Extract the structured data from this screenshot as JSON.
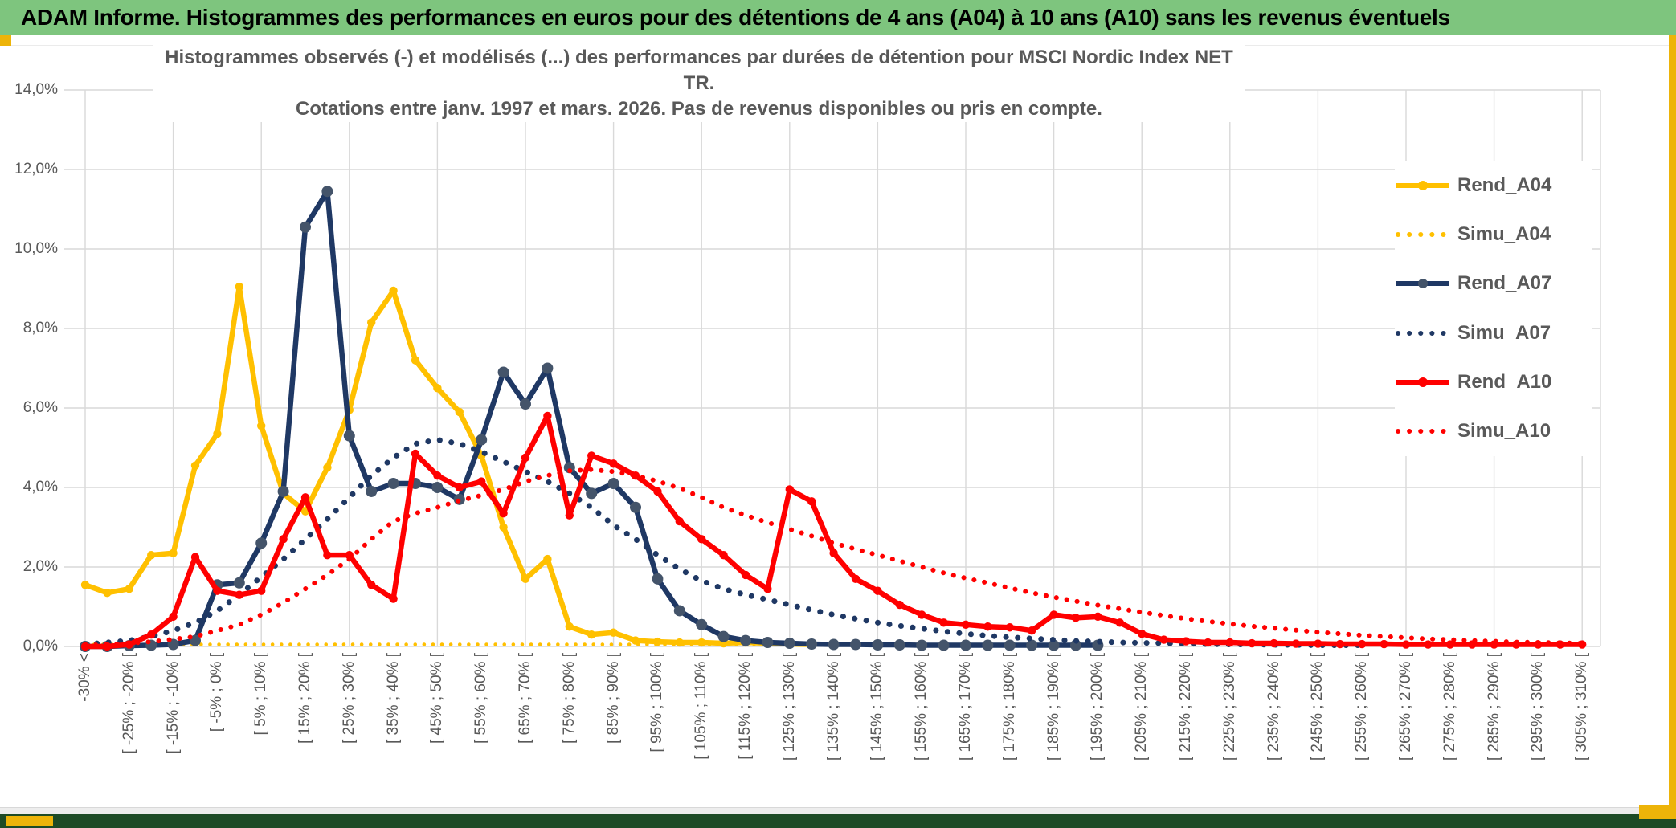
{
  "banner": {
    "title": "ADAM Informe. Histogrammes des performances en euros pour des détentions de 4 ans (A04) à 10 ans (A10) sans les revenus éventuels"
  },
  "colors": {
    "banner_green": "#7ec57e",
    "accent_gold": "#edb409",
    "bottom_bar_green": "#1d4b26",
    "grid": "#d9d9d9",
    "axis_text": "#595959",
    "series_gold": "#FFC000",
    "series_navy": "#1F3864",
    "series_navy_marker": "#44546A",
    "series_red": "#FF0000"
  },
  "chart_data": {
    "type": "line",
    "title_line1": "Histogrammes observés (-) et modélisés (...) des performances par durées de détention pour MSCI Nordic Index NET TR.",
    "title_line2": "Cotations entre janv. 1997 et mars. 2026. Pas de revenus disponibles ou pris en compte.",
    "ylabel": "",
    "xlabel": "",
    "ylim": [
      0,
      14
    ],
    "ytick_step_pct": 2,
    "y_tick_labels": [
      "0,0%",
      "2,0%",
      "4,0%",
      "6,0%",
      "8,0%",
      "10,0%",
      "12,0%",
      "14,0%"
    ],
    "grid": true,
    "legend_position": "right-overlay",
    "bin_count": 69,
    "bin_width_pct": 5,
    "tick_label_placement": "every 2nd bin starting at bin 0; vertical gridline every 4th bin",
    "categories": [
      "-30% <",
      "[ -25% ; -20% [",
      "[ -15% ; -10% [",
      "[ -5% ; 0% [",
      "[ 5% ; 10% [",
      "[ 15% ; 20% [",
      "[ 25% ; 30% [",
      "[ 35% ; 40% [",
      "[ 45% ; 50% [",
      "[ 55% ; 60% [",
      "[ 65% ; 70% [",
      "[ 75% ; 80% [",
      "[ 85% ; 90% [",
      "[ 95% ; 100% [",
      "[ 105% ; 110% [",
      "[ 115% ; 120% [",
      "[ 125% ; 130% [",
      "[ 135% ; 140% [",
      "[ 145% ; 150% [",
      "[ 155% ; 160% [",
      "[ 165% ; 170% [",
      "[ 175% ; 180% [",
      "[ 185% ; 190% [",
      "[ 195% ; 200% [",
      "[ 205% ; 210% [",
      "[ 215% ; 220% [",
      "[ 225% ; 230% [",
      "[ 235% ; 240% [",
      "[ 245% ; 250% [",
      "[ 255% ; 260% [",
      "[ 265% ; 270% [",
      "[ 275% ; 280% [",
      "[ 285% ; 290% [",
      "[ 295% ; 300% [",
      "[ 305% ; 310% ["
    ],
    "series": [
      {
        "name": "Rend_A04",
        "color": "#FFC000",
        "marker_color": "#FFC000",
        "style": "solid",
        "values": [
          1.55,
          1.35,
          1.45,
          2.3,
          2.35,
          4.55,
          5.35,
          9.05,
          5.55,
          3.85,
          3.4,
          4.5,
          5.95,
          8.15,
          8.95,
          7.2,
          6.5,
          5.9,
          4.8,
          3.0,
          1.7,
          2.2,
          0.5,
          0.3,
          0.35,
          0.15,
          0.12,
          0.1,
          0.1,
          0.08,
          0.1,
          0.08,
          0.06,
          0.05,
          null,
          null,
          null,
          null,
          null,
          null,
          null,
          null,
          null,
          null,
          null,
          null,
          null,
          null,
          null,
          null,
          null,
          null,
          null,
          null,
          null,
          null,
          null,
          null,
          null,
          null,
          null,
          null,
          null,
          null,
          null,
          null,
          null,
          null,
          null
        ]
      },
      {
        "name": "Simu_A04",
        "color": "#FFC000",
        "style": "dotted",
        "values": [
          0.05,
          0.05,
          0.05,
          0.05,
          0.05,
          0.05,
          0.05,
          0.05,
          0.05,
          0.05,
          0.05,
          0.05,
          0.05,
          0.05,
          0.05,
          0.05,
          0.05,
          0.05,
          0.05,
          0.05,
          0.05,
          0.05,
          0.05,
          0.05,
          0.05,
          0.05,
          0.05,
          0.05,
          0.05,
          0.05,
          0.05,
          0.05,
          0.05,
          0.05,
          0.05,
          0.05,
          0.05,
          0.05,
          0.05,
          null,
          null,
          null,
          null,
          null,
          null,
          null,
          null,
          null,
          null,
          null,
          null,
          null,
          null,
          null,
          null,
          null,
          null,
          null,
          null,
          null,
          null,
          null,
          null,
          null,
          null,
          null,
          null,
          null,
          null
        ]
      },
      {
        "name": "Rend_A07",
        "color": "#1F3864",
        "marker_color": "#44546A",
        "style": "solid",
        "values": [
          0,
          0,
          0.02,
          0.03,
          0.05,
          0.15,
          1.55,
          1.6,
          2.6,
          3.9,
          10.55,
          11.45,
          5.3,
          3.9,
          4.1,
          4.1,
          4.0,
          3.7,
          5.2,
          6.9,
          6.1,
          7.0,
          4.5,
          3.85,
          4.1,
          3.5,
          1.7,
          0.9,
          0.55,
          0.25,
          0.15,
          0.1,
          0.08,
          0.06,
          0.05,
          0.05,
          0.04,
          0.04,
          0.03,
          0.03,
          0.03,
          0.03,
          0.03,
          0.03,
          0.03,
          0.03,
          0.03,
          null,
          null,
          null,
          null,
          null,
          null,
          null,
          null,
          null,
          null,
          null,
          null,
          null,
          null,
          null,
          null,
          null,
          null,
          null,
          null,
          null,
          null
        ]
      },
      {
        "name": "Simu_A07",
        "color": "#1F3864",
        "style": "dotted",
        "values": [
          0.05,
          0.1,
          0.15,
          0.25,
          0.4,
          0.6,
          0.9,
          1.3,
          1.75,
          2.2,
          2.7,
          3.2,
          3.75,
          4.3,
          4.75,
          5.1,
          5.2,
          5.1,
          4.9,
          4.65,
          4.4,
          4.15,
          3.85,
          3.5,
          3.05,
          2.7,
          2.3,
          1.95,
          1.65,
          1.45,
          1.3,
          1.18,
          1.05,
          0.92,
          0.8,
          0.7,
          0.6,
          0.52,
          0.45,
          0.38,
          0.32,
          0.27,
          0.23,
          0.2,
          0.17,
          0.14,
          0.12,
          0.1,
          0.09,
          0.08,
          0.07,
          0.06,
          0.05,
          0.05,
          0.04,
          0.04,
          0.03,
          0.03,
          0.03,
          null,
          null,
          null,
          null,
          null,
          null,
          null,
          null,
          null,
          null
        ]
      },
      {
        "name": "Rend_A10",
        "color": "#FF0000",
        "marker_color": "#FF0000",
        "style": "solid",
        "values": [
          0,
          0,
          0.05,
          0.3,
          0.75,
          2.25,
          1.4,
          1.3,
          1.4,
          2.7,
          3.75,
          2.3,
          2.3,
          1.55,
          1.2,
          4.85,
          4.3,
          4.0,
          4.15,
          3.35,
          4.75,
          5.8,
          3.3,
          4.8,
          4.6,
          4.3,
          3.9,
          3.15,
          2.7,
          2.3,
          1.8,
          1.45,
          3.95,
          3.65,
          2.35,
          1.7,
          1.4,
          1.05,
          0.8,
          0.6,
          0.55,
          0.5,
          0.48,
          0.4,
          0.8,
          0.72,
          0.75,
          0.6,
          0.32,
          0.17,
          0.13,
          0.1,
          0.1,
          0.08,
          0.08,
          0.07,
          0.07,
          0.06,
          0.06,
          0.06,
          0.05,
          0.05,
          0.05,
          0.05,
          0.05,
          0.05,
          0.05,
          0.05,
          0.05
        ]
      },
      {
        "name": "Simu_A10",
        "color": "#FF0000",
        "style": "dotted",
        "values": [
          0.03,
          0.05,
          0.08,
          0.12,
          0.18,
          0.25,
          0.4,
          0.55,
          0.8,
          1.1,
          1.45,
          1.8,
          2.2,
          2.7,
          3.15,
          3.35,
          3.5,
          3.67,
          3.8,
          3.95,
          4.15,
          4.3,
          4.42,
          4.45,
          4.4,
          4.3,
          4.16,
          3.98,
          3.75,
          3.5,
          3.3,
          3.12,
          2.95,
          2.78,
          2.6,
          2.45,
          2.3,
          2.15,
          2.0,
          1.85,
          1.72,
          1.6,
          1.47,
          1.35,
          1.24,
          1.14,
          1.04,
          0.95,
          0.86,
          0.78,
          0.7,
          0.63,
          0.57,
          0.51,
          0.46,
          0.41,
          0.36,
          0.32,
          0.28,
          0.25,
          0.22,
          0.19,
          0.17,
          0.15,
          0.13,
          0.11,
          0.1,
          0.09,
          0.08
        ]
      }
    ]
  }
}
